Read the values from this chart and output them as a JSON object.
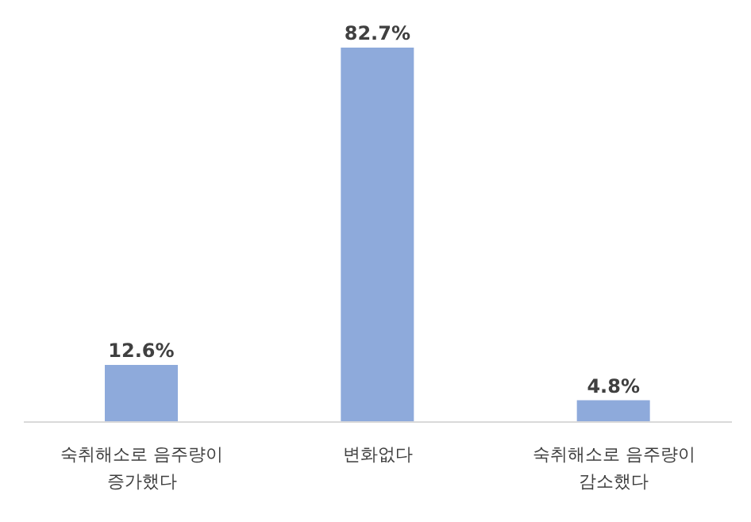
{
  "chart_data": {
    "type": "bar",
    "categories": [
      "숙취해소로 음주량이 증가했다",
      "변화없다",
      "숙취해소로 음주량이 감소했다"
    ],
    "values": [
      12.6,
      82.7,
      4.8
    ],
    "value_labels": [
      "12.6%",
      "82.7%",
      "4.8%"
    ],
    "color": "#8eaadb"
  }
}
